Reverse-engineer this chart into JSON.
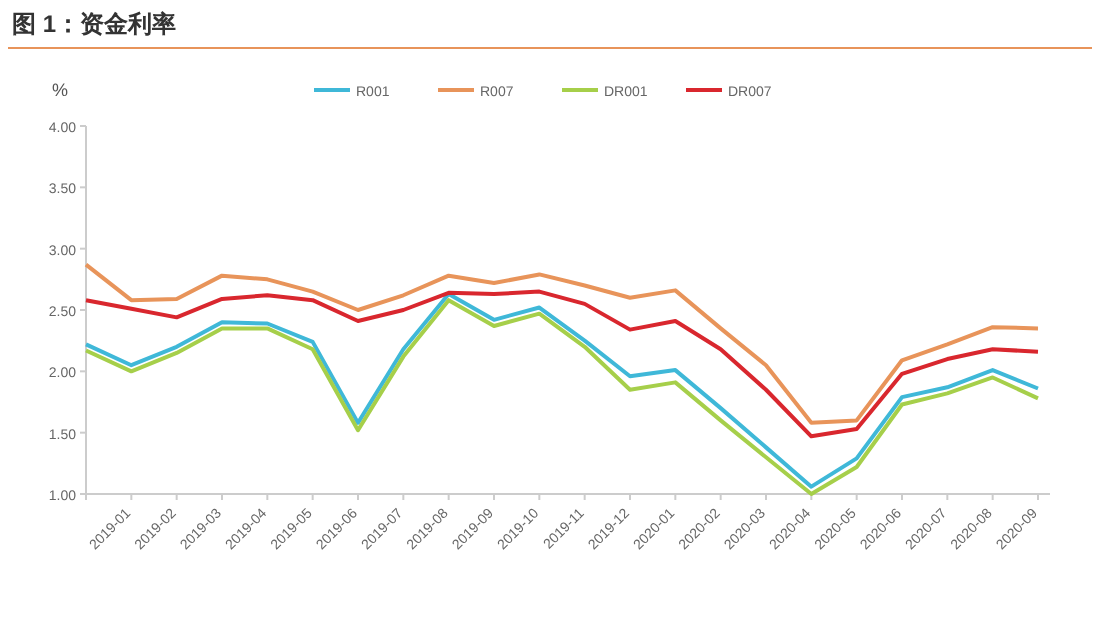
{
  "chart_data": {
    "type": "line",
    "title": "图 1：资金利率",
    "ylabel": "%",
    "categories": [
      null,
      "2019-01",
      "2019-02",
      "2019-03",
      "2019-04",
      "2019-05",
      "2019-06",
      "2019-07",
      "2019-08",
      "2019-09",
      "2019-10",
      "2019-11",
      "2019-12",
      "2020-01",
      "2020-02",
      "2020-03",
      "2020-04",
      "2020-05",
      "2020-06",
      "2020-07",
      "2020-08",
      "2020-09"
    ],
    "series": [
      {
        "name": "R001",
        "color": "#3fb8d8",
        "values": [
          2.22,
          2.05,
          2.2,
          2.4,
          2.39,
          2.24,
          1.58,
          2.18,
          2.63,
          2.42,
          2.52,
          2.25,
          1.96,
          2.01,
          1.7,
          1.38,
          1.06,
          1.29,
          1.79,
          1.87,
          2.01,
          1.86
        ]
      },
      {
        "name": "R007",
        "color": "#e8945a",
        "values": [
          2.87,
          2.58,
          2.59,
          2.78,
          2.75,
          2.65,
          2.5,
          2.62,
          2.78,
          2.72,
          2.79,
          2.7,
          2.6,
          2.66,
          2.35,
          2.05,
          1.58,
          1.6,
          2.09,
          2.22,
          2.36,
          2.35
        ]
      },
      {
        "name": "DR001",
        "color": "#a6cf4a",
        "values": [
          2.17,
          2.0,
          2.15,
          2.35,
          2.35,
          2.18,
          1.52,
          2.12,
          2.58,
          2.37,
          2.47,
          2.2,
          1.85,
          1.91,
          1.6,
          1.3,
          1.0,
          1.22,
          1.73,
          1.82,
          1.95,
          1.78
        ]
      },
      {
        "name": "DR007",
        "color": "#d9272e",
        "values": [
          2.58,
          2.51,
          2.44,
          2.59,
          2.62,
          2.58,
          2.41,
          2.5,
          2.64,
          2.63,
          2.65,
          2.55,
          2.34,
          2.41,
          2.18,
          1.85,
          1.47,
          1.53,
          1.98,
          2.1,
          2.18,
          2.16
        ]
      }
    ],
    "ylim": [
      1.0,
      4.0
    ],
    "yticks": [
      {
        "value": 1.0,
        "label": "1.00"
      },
      {
        "value": 1.5,
        "label": "1.50"
      },
      {
        "value": 2.0,
        "label": "2.00"
      },
      {
        "value": 2.5,
        "label": "2.50"
      },
      {
        "value": 3.0,
        "label": "3.00"
      },
      {
        "value": 3.5,
        "label": "3.50"
      },
      {
        "value": 4.0,
        "label": "4.00"
      }
    ],
    "legend": "top"
  }
}
